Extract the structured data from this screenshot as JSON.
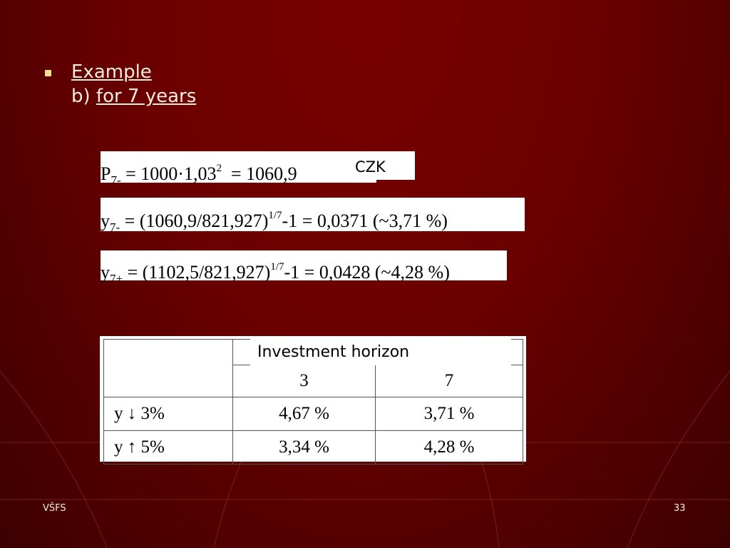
{
  "bullet": {
    "title": "Example",
    "prefix": "b)",
    "subtitle": "for 7 years"
  },
  "formulas": [
    {
      "parts": [
        "P",
        "7-",
        " = 1000·1,03",
        "2",
        "  = 1060,9"
      ],
      "unit": "CZK"
    },
    {
      "parts": [
        "y",
        "7-",
        " = (1060,9/821,927)",
        "1/7",
        "-1 = 0,0371 (~3,71 %)"
      ]
    },
    {
      "parts": [
        "y",
        "7+",
        " = (1102,5/821,927)",
        "1/7",
        "-1 = 0,0428 (~4,28 %)"
      ]
    }
  ],
  "table": {
    "header": "Investment horizon",
    "columns": [
      "3",
      "7"
    ],
    "rows": [
      [
        "y ↓ 3%",
        "4,67 %",
        "3,71 %"
      ],
      [
        "y ↑ 5%",
        "3,34 %",
        "4,28 %"
      ]
    ]
  },
  "footer": {
    "left": "VŠFS",
    "right": "33"
  }
}
